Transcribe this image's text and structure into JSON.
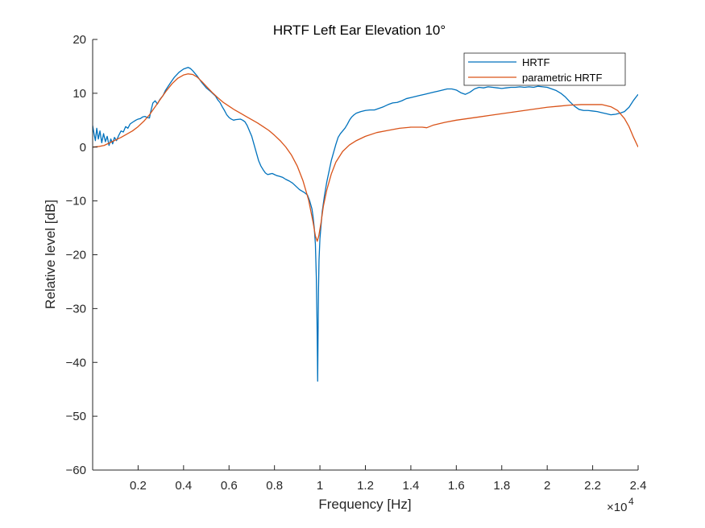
{
  "chart_data": {
    "type": "line",
    "title": "HRTF Left Ear Elevation 10°",
    "xlabel": "Frequency [Hz]",
    "ylabel": "Relative level [dB]",
    "xlim": [
      0,
      24000
    ],
    "ylim": [
      -60,
      20
    ],
    "x_ticks": [
      2000,
      4000,
      6000,
      8000,
      10000,
      12000,
      14000,
      16000,
      18000,
      20000,
      22000,
      24000
    ],
    "x_tick_labels": [
      "0.2",
      "0.4",
      "0.6",
      "0.8",
      "1",
      "1.2",
      "1.4",
      "1.6",
      "1.8",
      "2",
      "2.2",
      "2.4"
    ],
    "x_exponent_base": "×10",
    "x_exponent_power": "4",
    "y_ticks": [
      -60,
      -50,
      -40,
      -30,
      -20,
      -10,
      0,
      10,
      20
    ],
    "y_tick_labels": [
      "−60",
      "−50",
      "−40",
      "−30",
      "−20",
      "−10",
      "0",
      "10",
      "20"
    ],
    "grid": false,
    "legend_position": "top-right",
    "series": [
      {
        "name": "HRTF",
        "color": "#0072BD",
        "points": [
          [
            0,
            4
          ],
          [
            60,
            2.5
          ],
          [
            120,
            1.2
          ],
          [
            180,
            3.5
          ],
          [
            250,
            1.5
          ],
          [
            320,
            3
          ],
          [
            400,
            0.8
          ],
          [
            480,
            2.5
          ],
          [
            560,
            1
          ],
          [
            640,
            2
          ],
          [
            720,
            0.3
          ],
          [
            800,
            1.5
          ],
          [
            880,
            0.6
          ],
          [
            960,
            1.8
          ],
          [
            1050,
            1.2
          ],
          [
            1150,
            2.2
          ],
          [
            1250,
            3
          ],
          [
            1350,
            2.8
          ],
          [
            1450,
            3.8
          ],
          [
            1550,
            3.5
          ],
          [
            1650,
            4.3
          ],
          [
            1750,
            4.6
          ],
          [
            1900,
            5
          ],
          [
            2000,
            5.2
          ],
          [
            2100,
            5.3
          ],
          [
            2200,
            5.6
          ],
          [
            2300,
            5.7
          ],
          [
            2400,
            5.5
          ],
          [
            2500,
            5.4
          ],
          [
            2550,
            6.5
          ],
          [
            2650,
            8.2
          ],
          [
            2750,
            8.6
          ],
          [
            2850,
            8.0
          ],
          [
            2950,
            8.8
          ],
          [
            3100,
            9.6
          ],
          [
            3200,
            10.5
          ],
          [
            3400,
            11.8
          ],
          [
            3600,
            13.0
          ],
          [
            3800,
            13.9
          ],
          [
            4000,
            14.5
          ],
          [
            4200,
            14.8
          ],
          [
            4300,
            14.6
          ],
          [
            4400,
            14.2
          ],
          [
            4600,
            13.2
          ],
          [
            4800,
            12.0
          ],
          [
            5000,
            11.0
          ],
          [
            5200,
            10.3
          ],
          [
            5400,
            9.5
          ],
          [
            5500,
            8.8
          ],
          [
            5600,
            8.3
          ],
          [
            5700,
            7.5
          ],
          [
            5800,
            6.8
          ],
          [
            5900,
            6.0
          ],
          [
            6000,
            5.5
          ],
          [
            6100,
            5.2
          ],
          [
            6200,
            5.0
          ],
          [
            6300,
            5.1
          ],
          [
            6500,
            5.2
          ],
          [
            6600,
            5.0
          ],
          [
            6700,
            4.7
          ],
          [
            6800,
            4.0
          ],
          [
            6900,
            3.0
          ],
          [
            7000,
            2.0
          ],
          [
            7100,
            0.5
          ],
          [
            7200,
            -1.0
          ],
          [
            7300,
            -2.5
          ],
          [
            7400,
            -3.5
          ],
          [
            7500,
            -4.2
          ],
          [
            7600,
            -4.8
          ],
          [
            7700,
            -5.1
          ],
          [
            7800,
            -5.0
          ],
          [
            7900,
            -4.9
          ],
          [
            8000,
            -5.1
          ],
          [
            8100,
            -5.3
          ],
          [
            8200,
            -5.4
          ],
          [
            8350,
            -5.6
          ],
          [
            8500,
            -6.0
          ],
          [
            8650,
            -6.3
          ],
          [
            8800,
            -6.7
          ],
          [
            8950,
            -7.3
          ],
          [
            9100,
            -7.9
          ],
          [
            9300,
            -8.4
          ],
          [
            9450,
            -8.9
          ],
          [
            9550,
            -10.0
          ],
          [
            9650,
            -11.5
          ],
          [
            9700,
            -13.0
          ],
          [
            9750,
            -15.0
          ],
          [
            9800,
            -18.0
          ],
          [
            9840,
            -24
          ],
          [
            9870,
            -32
          ],
          [
            9890,
            -39
          ],
          [
            9900,
            -43.5
          ],
          [
            9915,
            -36
          ],
          [
            9935,
            -27
          ],
          [
            9960,
            -21
          ],
          [
            10000,
            -17
          ],
          [
            10100,
            -12
          ],
          [
            10200,
            -9
          ],
          [
            10300,
            -6.5
          ],
          [
            10400,
            -4.5
          ],
          [
            10500,
            -2.5
          ],
          [
            10600,
            -1.0
          ],
          [
            10700,
            0.5
          ],
          [
            10800,
            1.8
          ],
          [
            10900,
            2.5
          ],
          [
            11000,
            3.0
          ],
          [
            11100,
            3.5
          ],
          [
            11200,
            4.2
          ],
          [
            11300,
            5.0
          ],
          [
            11400,
            5.6
          ],
          [
            11500,
            6.0
          ],
          [
            11600,
            6.3
          ],
          [
            11800,
            6.6
          ],
          [
            12000,
            6.8
          ],
          [
            12200,
            6.9
          ],
          [
            12400,
            6.9
          ],
          [
            12600,
            7.2
          ],
          [
            12800,
            7.5
          ],
          [
            13000,
            7.9
          ],
          [
            13200,
            8.2
          ],
          [
            13400,
            8.3
          ],
          [
            13600,
            8.6
          ],
          [
            13800,
            9.0
          ],
          [
            14000,
            9.2
          ],
          [
            14200,
            9.4
          ],
          [
            14400,
            9.6
          ],
          [
            14600,
            9.8
          ],
          [
            14800,
            10.0
          ],
          [
            15000,
            10.2
          ],
          [
            15200,
            10.4
          ],
          [
            15400,
            10.6
          ],
          [
            15600,
            10.8
          ],
          [
            15800,
            10.8
          ],
          [
            16000,
            10.6
          ],
          [
            16200,
            10.1
          ],
          [
            16400,
            9.8
          ],
          [
            16600,
            10.2
          ],
          [
            16800,
            10.8
          ],
          [
            17000,
            11.1
          ],
          [
            17200,
            11.0
          ],
          [
            17400,
            11.2
          ],
          [
            17600,
            11.1
          ],
          [
            17800,
            11.0
          ],
          [
            18000,
            10.9
          ],
          [
            18200,
            11.0
          ],
          [
            18400,
            11.1
          ],
          [
            18600,
            11.1
          ],
          [
            18800,
            11.2
          ],
          [
            19000,
            11.1
          ],
          [
            19200,
            11.2
          ],
          [
            19400,
            11.1
          ],
          [
            19600,
            11.3
          ],
          [
            19800,
            11.2
          ],
          [
            20000,
            11.1
          ],
          [
            20200,
            10.8
          ],
          [
            20400,
            10.5
          ],
          [
            20600,
            10.0
          ],
          [
            20800,
            9.3
          ],
          [
            21000,
            8.4
          ],
          [
            21200,
            7.6
          ],
          [
            21400,
            7.0
          ],
          [
            21600,
            6.8
          ],
          [
            21800,
            6.8
          ],
          [
            22000,
            6.7
          ],
          [
            22200,
            6.6
          ],
          [
            22400,
            6.4
          ],
          [
            22600,
            6.2
          ],
          [
            22800,
            6.0
          ],
          [
            23000,
            6.1
          ],
          [
            23200,
            6.3
          ],
          [
            23400,
            6.6
          ],
          [
            23600,
            7.4
          ],
          [
            23800,
            8.7
          ],
          [
            24000,
            9.8
          ]
        ]
      },
      {
        "name": "parametric HRTF",
        "color": "#D95319",
        "points": [
          [
            0,
            0
          ],
          [
            250,
            0.1
          ],
          [
            500,
            0.3
          ],
          [
            750,
            0.8
          ],
          [
            1000,
            1.3
          ],
          [
            1250,
            1.8
          ],
          [
            1500,
            2.4
          ],
          [
            1750,
            3.0
          ],
          [
            2000,
            3.8
          ],
          [
            2250,
            4.8
          ],
          [
            2500,
            6.0
          ],
          [
            2750,
            7.5
          ],
          [
            3000,
            9.0
          ],
          [
            3250,
            10.5
          ],
          [
            3500,
            11.8
          ],
          [
            3750,
            12.8
          ],
          [
            4000,
            13.4
          ],
          [
            4200,
            13.6
          ],
          [
            4400,
            13.5
          ],
          [
            4600,
            13.0
          ],
          [
            4800,
            12.2
          ],
          [
            5000,
            11.3
          ],
          [
            5250,
            10.2
          ],
          [
            5500,
            9.2
          ],
          [
            5750,
            8.3
          ],
          [
            6000,
            7.6
          ],
          [
            6250,
            6.9
          ],
          [
            6500,
            6.3
          ],
          [
            6750,
            5.7
          ],
          [
            7000,
            5.1
          ],
          [
            7250,
            4.5
          ],
          [
            7500,
            3.8
          ],
          [
            7750,
            3.1
          ],
          [
            8000,
            2.2
          ],
          [
            8250,
            1.2
          ],
          [
            8500,
            0.0
          ],
          [
            8750,
            -1.5
          ],
          [
            9000,
            -3.5
          ],
          [
            9250,
            -6.2
          ],
          [
            9500,
            -9.8
          ],
          [
            9700,
            -14.0
          ],
          [
            9800,
            -16.5
          ],
          [
            9880,
            -17.5
          ],
          [
            9950,
            -16.5
          ],
          [
            10050,
            -14.0
          ],
          [
            10150,
            -11.0
          ],
          [
            10300,
            -8.0
          ],
          [
            10500,
            -5.0
          ],
          [
            10700,
            -2.8
          ],
          [
            11000,
            -0.8
          ],
          [
            11300,
            0.4
          ],
          [
            11600,
            1.2
          ],
          [
            12000,
            2.0
          ],
          [
            12500,
            2.7
          ],
          [
            13000,
            3.1
          ],
          [
            13500,
            3.5
          ],
          [
            14000,
            3.7
          ],
          [
            14500,
            3.7
          ],
          [
            14700,
            3.6
          ],
          [
            15000,
            4.1
          ],
          [
            15500,
            4.6
          ],
          [
            16000,
            5.0
          ],
          [
            16500,
            5.3
          ],
          [
            17000,
            5.6
          ],
          [
            17500,
            5.9
          ],
          [
            18000,
            6.2
          ],
          [
            18500,
            6.5
          ],
          [
            19000,
            6.8
          ],
          [
            19500,
            7.1
          ],
          [
            20000,
            7.4
          ],
          [
            20500,
            7.6
          ],
          [
            21000,
            7.8
          ],
          [
            21500,
            7.9
          ],
          [
            22000,
            7.9
          ],
          [
            22400,
            7.9
          ],
          [
            22800,
            7.5
          ],
          [
            23100,
            6.8
          ],
          [
            23400,
            5.3
          ],
          [
            23600,
            3.8
          ],
          [
            23800,
            1.8
          ],
          [
            24000,
            0.0
          ]
        ]
      }
    ]
  }
}
